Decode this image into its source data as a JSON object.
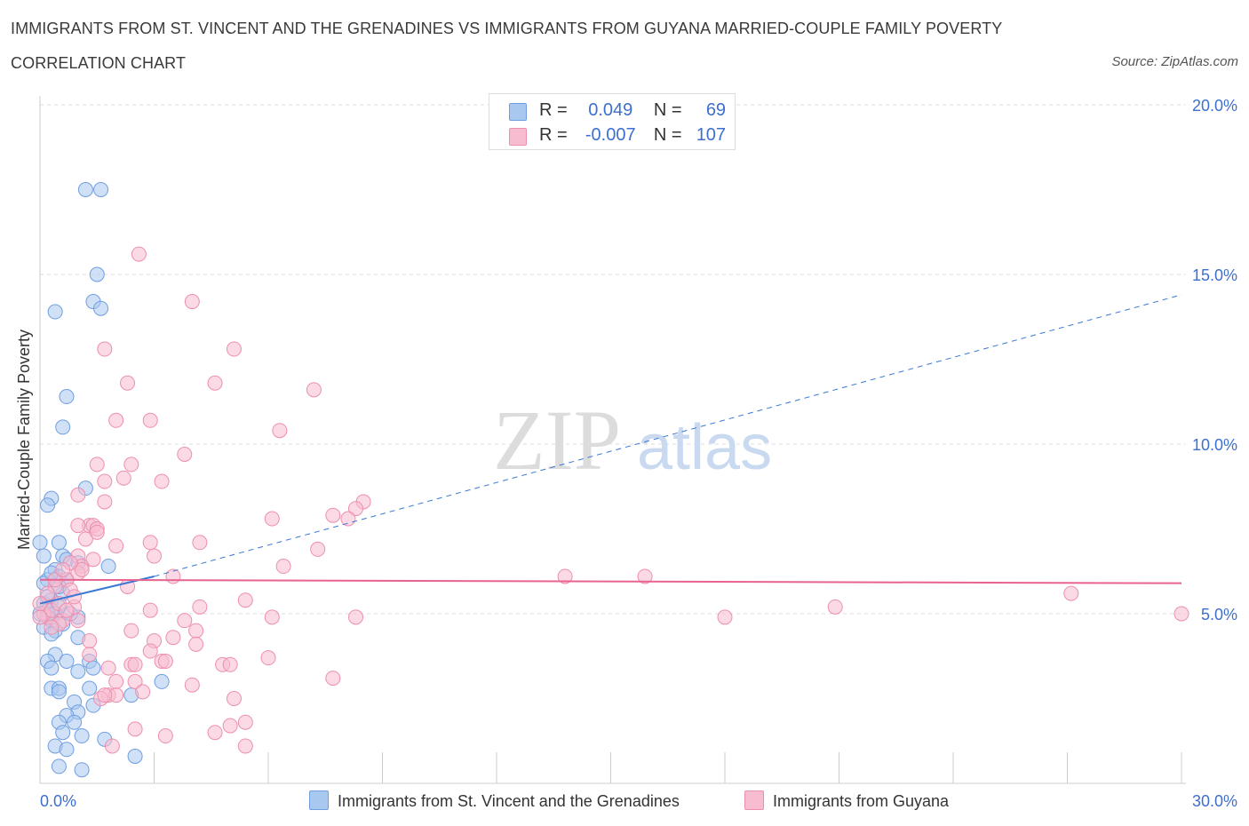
{
  "header": {
    "title_line1": "IMMIGRANTS FROM ST. VINCENT AND THE GRENADINES VS IMMIGRANTS FROM GUYANA MARRIED-COUPLE FAMILY POVERTY",
    "title_line2": "CORRELATION CHART",
    "source": "Source: ZipAtlas.com"
  },
  "watermark": {
    "zip": "ZIP",
    "atlas": "atlas"
  },
  "colors": {
    "blue_fill": "#a9c8f0",
    "blue_stroke": "#6f9ee0",
    "blue_line": "#3a78d4",
    "pink_fill": "#f7bcd0",
    "pink_stroke": "#ec8fae",
    "pink_line": "#e8638f",
    "axis_text": "#3d6fd0",
    "grid": "#dddddd"
  },
  "legend": {
    "rows": [
      {
        "r_label": "R =",
        "r_value": "0.049",
        "n_label": "N =",
        "n_value": "69"
      },
      {
        "r_label": "R =",
        "r_value": "-0.007",
        "n_label": "N =",
        "n_value": "107"
      }
    ],
    "bottom": [
      {
        "label": "Immigrants from St. Vincent and the Grenadines"
      },
      {
        "label": "Immigrants from Guyana"
      }
    ]
  },
  "chart_data": {
    "type": "scatter",
    "ylabel": "Married-Couple Family Poverty",
    "xlabel": "",
    "xlim": [
      0,
      30
    ],
    "ylim": [
      0,
      20
    ],
    "x_tick_labels": [
      "0.0%",
      "30.0%"
    ],
    "y_ticks": [
      5,
      10,
      15,
      20
    ],
    "y_tick_labels": [
      "5.0%",
      "10.0%",
      "15.0%",
      "20.0%"
    ],
    "grid": true,
    "legend_placement": "top-center",
    "series": [
      {
        "name": "Immigrants from St. Vincent and the Grenadines",
        "color": "#a9c8f0",
        "trend": {
          "x": [
            0,
            3.0
          ],
          "y": [
            5.3,
            6.1
          ],
          "dashed_extension_to": [
            30,
            14.4
          ]
        },
        "points": [
          [
            1.2,
            17.5
          ],
          [
            1.6,
            17.5
          ],
          [
            1.5,
            15.0
          ],
          [
            1.4,
            14.2
          ],
          [
            1.6,
            14.0
          ],
          [
            0.4,
            13.9
          ],
          [
            0.7,
            11.4
          ],
          [
            0.6,
            10.5
          ],
          [
            1.2,
            8.7
          ],
          [
            0.3,
            8.4
          ],
          [
            0.2,
            8.2
          ],
          [
            0.5,
            7.1
          ],
          [
            0.0,
            7.1
          ],
          [
            0.1,
            6.7
          ],
          [
            0.6,
            6.7
          ],
          [
            0.7,
            6.6
          ],
          [
            1.0,
            6.5
          ],
          [
            1.8,
            6.4
          ],
          [
            0.4,
            6.3
          ],
          [
            0.5,
            6.1
          ],
          [
            0.2,
            6.0
          ],
          [
            0.7,
            6.0
          ],
          [
            0.1,
            5.9
          ],
          [
            0.6,
            5.6
          ],
          [
            0.3,
            5.4
          ],
          [
            0.1,
            5.3
          ],
          [
            0.5,
            5.2
          ],
          [
            0.2,
            5.1
          ],
          [
            0.0,
            5.0
          ],
          [
            0.4,
            5.0
          ],
          [
            0.3,
            4.8
          ],
          [
            0.6,
            4.7
          ],
          [
            0.1,
            4.6
          ],
          [
            0.4,
            4.5
          ],
          [
            1.0,
            4.9
          ],
          [
            0.3,
            4.4
          ],
          [
            1.0,
            4.3
          ],
          [
            0.4,
            3.8
          ],
          [
            0.2,
            3.6
          ],
          [
            0.7,
            3.6
          ],
          [
            1.3,
            3.6
          ],
          [
            0.3,
            3.4
          ],
          [
            1.4,
            3.4
          ],
          [
            1.0,
            3.3
          ],
          [
            3.2,
            3.0
          ],
          [
            0.3,
            2.8
          ],
          [
            0.5,
            2.8
          ],
          [
            1.3,
            2.8
          ],
          [
            0.5,
            2.7
          ],
          [
            2.4,
            2.6
          ],
          [
            0.9,
            2.4
          ],
          [
            1.4,
            2.3
          ],
          [
            1.0,
            2.1
          ],
          [
            0.7,
            2.0
          ],
          [
            0.5,
            1.8
          ],
          [
            0.9,
            1.8
          ],
          [
            0.6,
            1.5
          ],
          [
            1.1,
            1.4
          ],
          [
            1.7,
            1.3
          ],
          [
            0.4,
            1.1
          ],
          [
            0.7,
            1.0
          ],
          [
            2.5,
            0.8
          ],
          [
            0.5,
            0.5
          ],
          [
            1.1,
            0.4
          ],
          [
            0.2,
            5.5
          ],
          [
            0.5,
            5.8
          ],
          [
            0.3,
            6.2
          ],
          [
            0.8,
            5.0
          ],
          [
            0.2,
            4.9
          ]
        ]
      },
      {
        "name": "Immigrants from Guyana",
        "color": "#f7bcd0",
        "trend": {
          "x": [
            0,
            30
          ],
          "y": [
            6.0,
            5.9
          ]
        },
        "points": [
          [
            2.6,
            15.6
          ],
          [
            4.0,
            14.2
          ],
          [
            1.7,
            12.8
          ],
          [
            5.1,
            12.8
          ],
          [
            2.3,
            11.8
          ],
          [
            4.6,
            11.8
          ],
          [
            7.2,
            11.6
          ],
          [
            2.0,
            10.7
          ],
          [
            2.9,
            10.7
          ],
          [
            6.3,
            10.4
          ],
          [
            1.5,
            9.4
          ],
          [
            2.4,
            9.4
          ],
          [
            3.8,
            9.7
          ],
          [
            2.2,
            9.0
          ],
          [
            1.7,
            8.9
          ],
          [
            3.2,
            8.9
          ],
          [
            1.0,
            8.5
          ],
          [
            1.7,
            8.3
          ],
          [
            8.5,
            8.3
          ],
          [
            8.3,
            8.1
          ],
          [
            6.1,
            7.8
          ],
          [
            7.7,
            7.9
          ],
          [
            8.1,
            7.8
          ],
          [
            1.3,
            7.6
          ],
          [
            1.4,
            7.6
          ],
          [
            1.0,
            7.6
          ],
          [
            1.5,
            7.5
          ],
          [
            1.5,
            7.4
          ],
          [
            1.2,
            7.2
          ],
          [
            2.9,
            7.1
          ],
          [
            4.2,
            7.1
          ],
          [
            2.0,
            7.0
          ],
          [
            7.3,
            6.9
          ],
          [
            1.0,
            6.7
          ],
          [
            3.0,
            6.7
          ],
          [
            6.4,
            6.4
          ],
          [
            1.1,
            6.4
          ],
          [
            1.0,
            6.2
          ],
          [
            1.1,
            6.3
          ],
          [
            3.5,
            6.1
          ],
          [
            13.8,
            6.1
          ],
          [
            15.9,
            6.1
          ],
          [
            0.7,
            6.0
          ],
          [
            2.3,
            5.8
          ],
          [
            0.4,
            5.8
          ],
          [
            0.8,
            5.7
          ],
          [
            5.4,
            5.4
          ],
          [
            0.9,
            5.2
          ],
          [
            2.9,
            5.1
          ],
          [
            4.2,
            5.2
          ],
          [
            20.9,
            5.2
          ],
          [
            27.1,
            5.6
          ],
          [
            30.0,
            5.0
          ],
          [
            18.0,
            4.9
          ],
          [
            8.3,
            4.9
          ],
          [
            6.1,
            4.9
          ],
          [
            3.8,
            4.8
          ],
          [
            1.0,
            4.8
          ],
          [
            0.6,
            4.8
          ],
          [
            0.2,
            4.9
          ],
          [
            0.5,
            4.7
          ],
          [
            4.1,
            4.5
          ],
          [
            2.4,
            4.5
          ],
          [
            3.0,
            4.2
          ],
          [
            3.5,
            4.3
          ],
          [
            1.3,
            4.2
          ],
          [
            4.1,
            4.1
          ],
          [
            2.9,
            3.9
          ],
          [
            1.3,
            3.8
          ],
          [
            6.0,
            3.7
          ],
          [
            3.2,
            3.6
          ],
          [
            3.3,
            3.6
          ],
          [
            2.4,
            3.5
          ],
          [
            2.5,
            3.5
          ],
          [
            4.8,
            3.5
          ],
          [
            5.0,
            3.5
          ],
          [
            1.8,
            3.4
          ],
          [
            7.7,
            3.1
          ],
          [
            2.5,
            3.0
          ],
          [
            2.0,
            3.0
          ],
          [
            4.0,
            2.9
          ],
          [
            2.7,
            2.7
          ],
          [
            1.8,
            2.6
          ],
          [
            2.0,
            2.6
          ],
          [
            1.6,
            2.5
          ],
          [
            5.1,
            2.5
          ],
          [
            1.7,
            2.6
          ],
          [
            5.4,
            1.8
          ],
          [
            5.0,
            1.7
          ],
          [
            4.6,
            1.5
          ],
          [
            2.5,
            1.6
          ],
          [
            3.3,
            1.4
          ],
          [
            5.4,
            1.1
          ],
          [
            1.9,
            1.1
          ],
          [
            0.1,
            5.0
          ],
          [
            0.3,
            5.1
          ],
          [
            0.5,
            5.3
          ],
          [
            0.2,
            5.6
          ],
          [
            0.0,
            4.9
          ],
          [
            0.8,
            6.5
          ],
          [
            0.4,
            6.0
          ],
          [
            0.6,
            6.3
          ],
          [
            1.4,
            6.6
          ],
          [
            0.9,
            5.5
          ],
          [
            0.3,
            4.6
          ],
          [
            0.0,
            5.3
          ],
          [
            0.7,
            5.1
          ]
        ]
      }
    ]
  }
}
